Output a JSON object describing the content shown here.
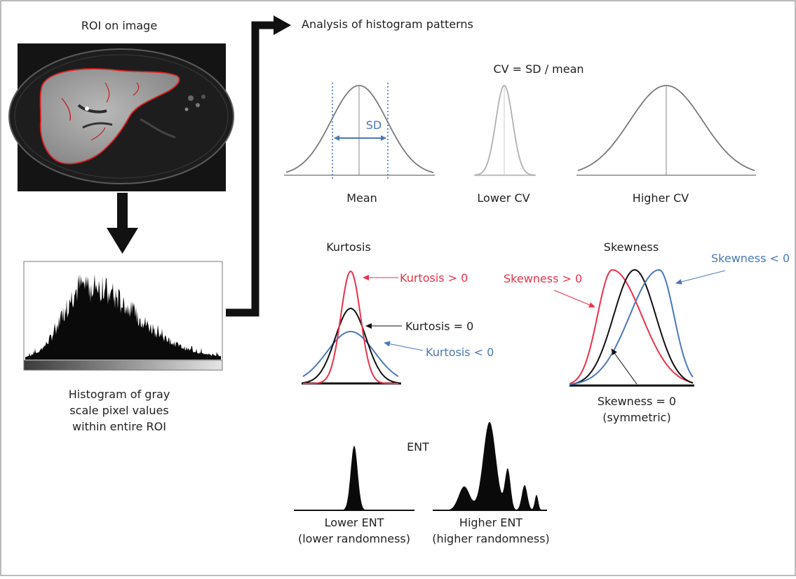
{
  "left": {
    "roi_title": "ROI on image",
    "histogram_caption": [
      "Histogram of gray",
      "scale pixel values",
      "within entire ROI"
    ]
  },
  "header": {
    "title": "Analysis of histogram patterns"
  },
  "cv": {
    "formula": "CV = SD / mean",
    "sd_label": "SD",
    "mean_label": "Mean",
    "lower_label": "Lower CV",
    "higher_label": "Higher CV"
  },
  "kurtosis": {
    "title": "Kurtosis",
    "positive": "Kurtosis > 0",
    "zero": "Kurtosis = 0",
    "negative": "Kurtosis < 0"
  },
  "skewness": {
    "title": "Skewness",
    "positive": "Skewness > 0",
    "negative": "Skewness < 0",
    "zero": [
      "Skewness = 0",
      "(symmetric)"
    ]
  },
  "ent": {
    "title": "ENT",
    "lower": [
      "Lower ENT",
      "(lower randomness)"
    ],
    "higher": [
      "Higher ENT",
      "(higher randomness)"
    ]
  },
  "colors": {
    "red": "#e8334a",
    "blue": "#4a78b9",
    "gray_curve": "#7a7a7a",
    "light_curve": "#b0b0b0"
  }
}
